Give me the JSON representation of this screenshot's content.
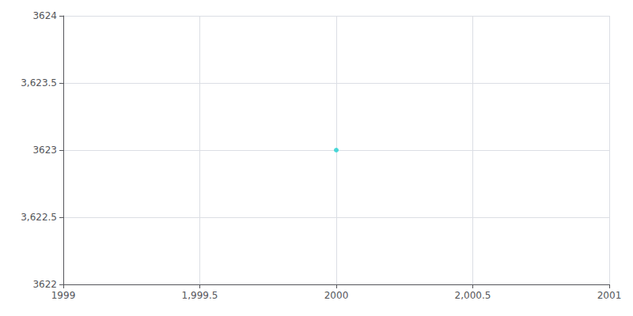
{
  "chart_data": {
    "type": "scatter",
    "x": [
      2000
    ],
    "values": [
      3623
    ],
    "color": "#1ECFCF",
    "xlim": [
      1999,
      2001
    ],
    "xticks": [
      1999,
      {
        "value": 1999.5,
        "label": "1,999.5"
      },
      2000,
      {
        "value": 2000.5,
        "label": "2,000.5"
      },
      2001
    ],
    "ylim": [
      3622,
      3624
    ],
    "yticks": [
      3622,
      {
        "value": 3622.5,
        "label": "3,622.5"
      },
      3623,
      {
        "value": 3623.5,
        "label": "3,623.5"
      },
      3624
    ],
    "grid": true
  }
}
